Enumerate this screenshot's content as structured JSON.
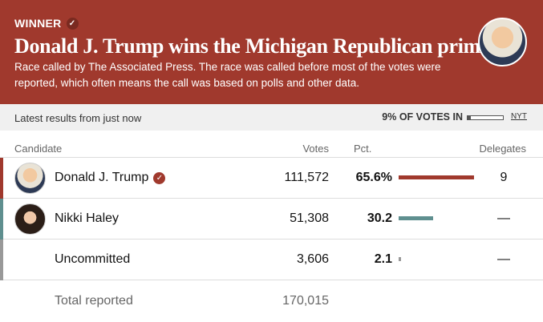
{
  "header": {
    "winner_label": "WINNER",
    "headline": "Donald J. Trump wins the Michigan Republican primary.",
    "subtext": "Race called by The Associated Press. The race was called before most of the votes were reported, which often means the call was based on polls and other data.",
    "color": "#a0392d"
  },
  "status": {
    "latest": "Latest results from just now",
    "votes_in": "9% OF VOTES IN",
    "votes_in_fraction": 0.09,
    "source": "NYT"
  },
  "columns": {
    "candidate": "Candidate",
    "votes": "Votes",
    "pct": "Pct.",
    "delegates": "Delegates"
  },
  "rows": [
    {
      "name": "Donald J. Trump",
      "votes": "111,572",
      "pct": "65.6%",
      "pct_value": 65.6,
      "delegates": "9",
      "color": "#a0392d",
      "winner": true
    },
    {
      "name": "Nikki Haley",
      "votes": "51,308",
      "pct": "30.2",
      "pct_value": 30.2,
      "delegates": "—",
      "color": "#5f8f8f"
    },
    {
      "name": "Uncommitted",
      "votes": "3,606",
      "pct": "2.1",
      "pct_value": 2.1,
      "delegates": "—",
      "color": "#999999"
    }
  ],
  "total": {
    "label": "Total reported",
    "votes": "170,015"
  }
}
